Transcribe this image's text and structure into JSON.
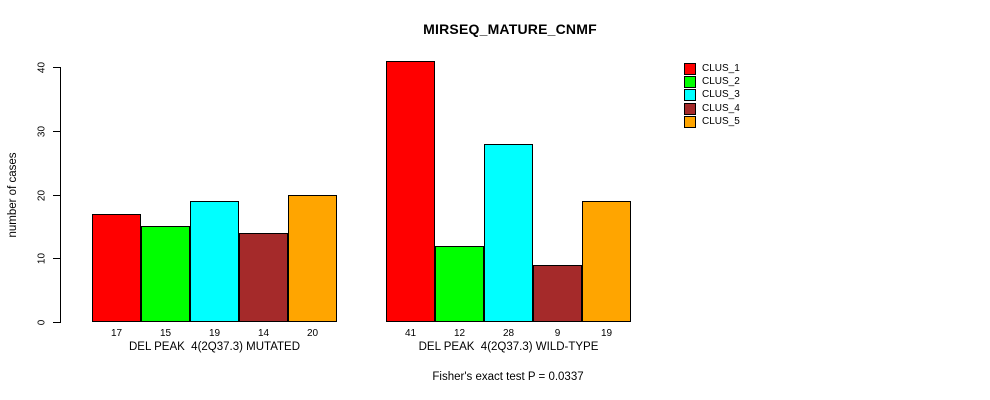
{
  "chart_data": {
    "type": "bar",
    "title": "MIRSEQ_MATURE_CNMF",
    "ylabel": "number of cases",
    "footnote": "Fisher's exact test P = 0.0337",
    "yticks": [
      0,
      10,
      20,
      30,
      40
    ],
    "ylim": [
      0,
      41
    ],
    "grid": false,
    "legend_position": "top-right",
    "bar_value_labels_shown": true,
    "categories": [
      "DEL PEAK  4(2Q37.3) MUTATED",
      "DEL PEAK  4(2Q37.3) WILD-TYPE"
    ],
    "series": [
      {
        "name": "CLUS_1",
        "color": "#FF0000",
        "values": [
          17,
          41
        ]
      },
      {
        "name": "CLUS_2",
        "color": "#00FF00",
        "values": [
          15,
          12
        ]
      },
      {
        "name": "CLUS_3",
        "color": "#00FFFF",
        "values": [
          19,
          28
        ]
      },
      {
        "name": "CLUS_4",
        "color": "#A52A2A",
        "values": [
          14,
          9
        ]
      },
      {
        "name": "CLUS_5",
        "color": "#FFA500",
        "values": [
          20,
          19
        ]
      }
    ],
    "axis_color": "#000000",
    "bar_border_color": "#000000"
  }
}
